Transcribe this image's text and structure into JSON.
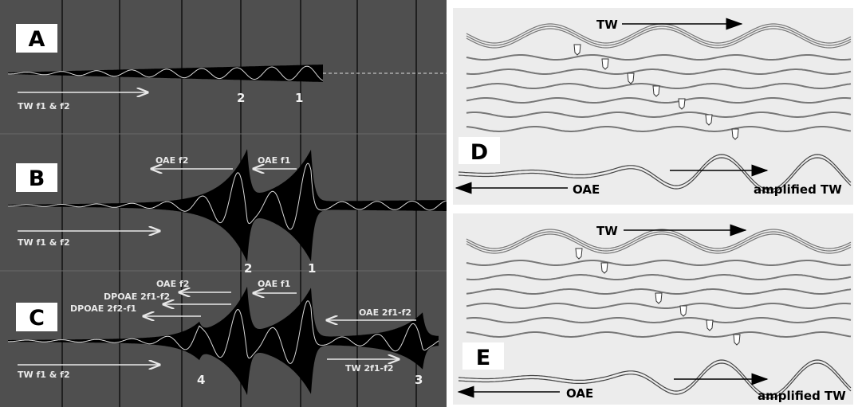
{
  "left": {
    "panels": [
      {
        "label": "A",
        "annotations": [
          "TW f1 & f2",
          "2",
          "1"
        ]
      },
      {
        "label": "B",
        "annotations": [
          "OAE f2",
          "OAE f1",
          "TW f1 & f2",
          "2",
          "1"
        ]
      },
      {
        "label": "C",
        "annotations": [
          "OAE f2",
          "DPOAE 2f1-f2",
          "DPOAE 2f2-f1",
          "OAE f1",
          "OAE 2f1-f2",
          "TW f1 & f2",
          "4",
          "TW 2f1-f2",
          "3"
        ]
      }
    ]
  },
  "right": {
    "panels": [
      {
        "label": "D",
        "texts": [
          "TW",
          "OAE",
          "amplified TW"
        ]
      },
      {
        "label": "E",
        "texts": [
          "TW",
          "OAE",
          "amplified TW"
        ]
      }
    ]
  }
}
